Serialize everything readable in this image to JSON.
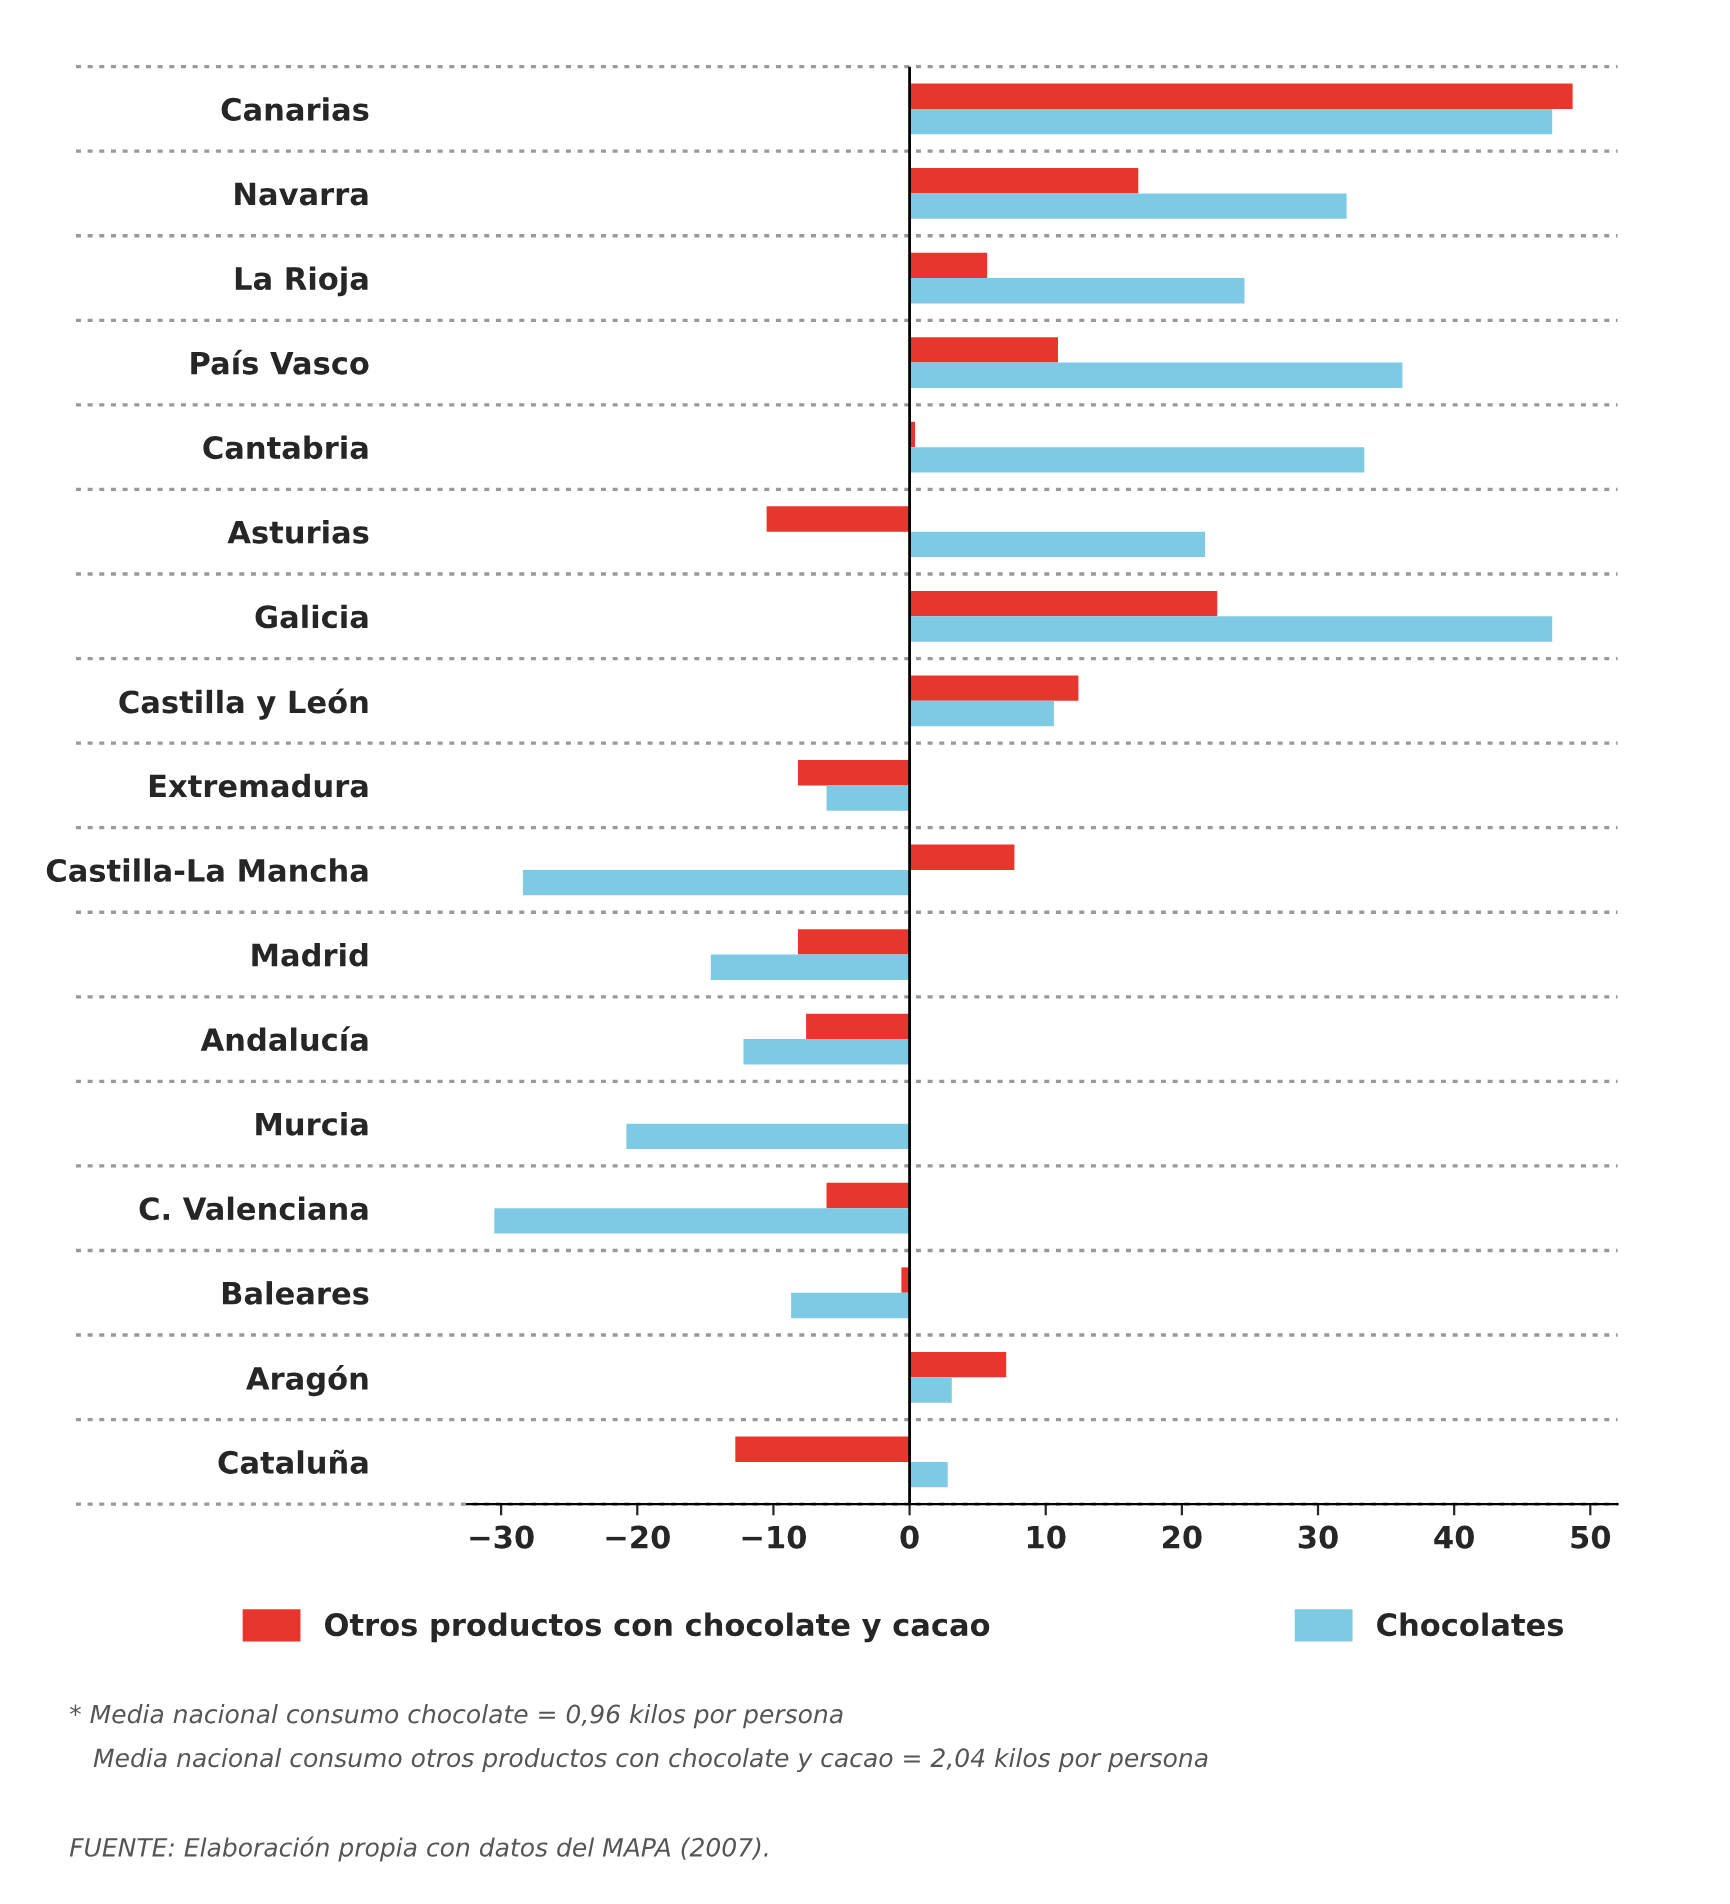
{
  "chart_data": {
    "type": "bar",
    "orientation": "horizontal",
    "categories": [
      "Canarias",
      "Navarra",
      "La Rioja",
      "País Vasco",
      "Cantabria",
      "Asturias",
      "Galicia",
      "Castilla y León",
      "Extremadura",
      "Castilla-La Mancha",
      "Madrid",
      "Andalucía",
      "Murcia",
      "C. Valenciana",
      "Baleares",
      "Aragón",
      "Cataluña"
    ],
    "series": [
      {
        "name": "Otros productos con chocolate y cacao",
        "color": "#e8362c",
        "values": [
          48.7,
          16.8,
          5.7,
          10.9,
          0.4,
          -10.5,
          22.6,
          12.4,
          -8.2,
          7.7,
          -8.2,
          -7.6,
          0,
          -6.1,
          -0.6,
          7.1,
          -12.8
        ]
      },
      {
        "name": "Chocolates",
        "color": "#7ecae5",
        "values": [
          47.2,
          32.1,
          24.6,
          36.2,
          33.4,
          21.7,
          47.2,
          10.6,
          -6.1,
          -28.4,
          -14.6,
          -12.2,
          -20.8,
          -30.5,
          -8.7,
          3.1,
          2.8
        ]
      }
    ],
    "xlim": [
      -32.5,
      52
    ],
    "xticks": [
      {
        "value": -30,
        "label": "−30"
      },
      {
        "value": -20,
        "label": "−20"
      },
      {
        "value": -10,
        "label": "−10"
      },
      0,
      10,
      20,
      30,
      40,
      50
    ],
    "grid": "y",
    "legend": "bottom",
    "annotations": [
      "* Media nacional consumo chocolate = 0,96 kilos por persona",
      "   Media nacional consumo otros productos con chocolate y cacao = 2,04 kilos por persona",
      "FUENTE: Elaboración propia con datos del MAPA (2007)."
    ]
  }
}
